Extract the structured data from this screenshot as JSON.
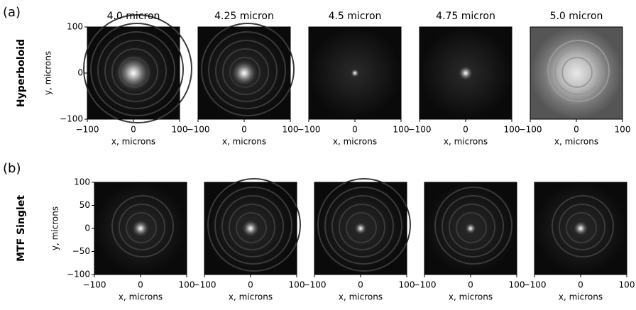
{
  "axes": {
    "xlabel": "x, microns",
    "ylabel": "y, microns",
    "xlim": [
      -100,
      100
    ],
    "ylim": [
      -100,
      100
    ],
    "xticks": [
      {
        "value": -100,
        "label": "−100"
      },
      0,
      100
    ]
  },
  "rows": [
    {
      "label": "(a)",
      "title": "Hyperboloid",
      "panel_titles": [
        "4.0 micron",
        "4.25 micron",
        "4.5 micron",
        "4.75 micron",
        "5.0 micron"
      ],
      "yticks": [
        100,
        0,
        {
          "value": -100,
          "label": "−100"
        }
      ]
    },
    {
      "label": "(b)",
      "title": "MTF Singlet",
      "yticks": [
        100,
        50,
        0,
        {
          "value": -50,
          "label": "−50"
        },
        {
          "value": -100,
          "label": "−100"
        }
      ]
    }
  ]
}
